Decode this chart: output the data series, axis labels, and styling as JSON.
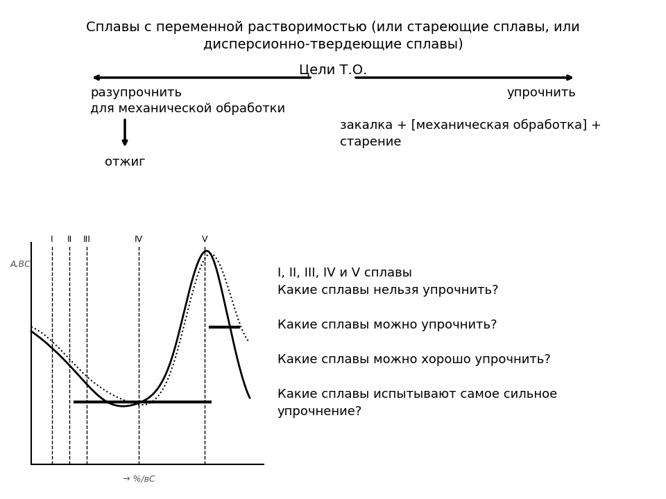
{
  "title_line1": "Сплавы с переменной растворимостью (или стареющие сплавы, или",
  "title_line2": "дисперсионно-твердеющие сплавы)",
  "goal_label": "Цели Т.О.",
  "left_goal": "разупрочнить\nдля механической обработки",
  "right_goal": "упрочнить",
  "left_process": "отжиг",
  "right_process": "закалка + [механическая обработка] +\nстарение",
  "questions_header": "I, II, III, IV и V сплавы",
  "q1": "Какие сплавы нельзя упрочнить?",
  "q2": "Какие сплавы можно упрочнить?",
  "q3": "Какие сплавы можно хорошо упрочнить?",
  "q4": "Какие сплавы испытывают самое сильное\nупрочнение?",
  "ylabel": "А,ВС",
  "xlabel": "→ %/вС",
  "roman_labels": [
    "I",
    "II",
    "III",
    "IV",
    "V"
  ],
  "bg_color": "#ffffff",
  "text_color": "#000000",
  "line_color": "#000000"
}
